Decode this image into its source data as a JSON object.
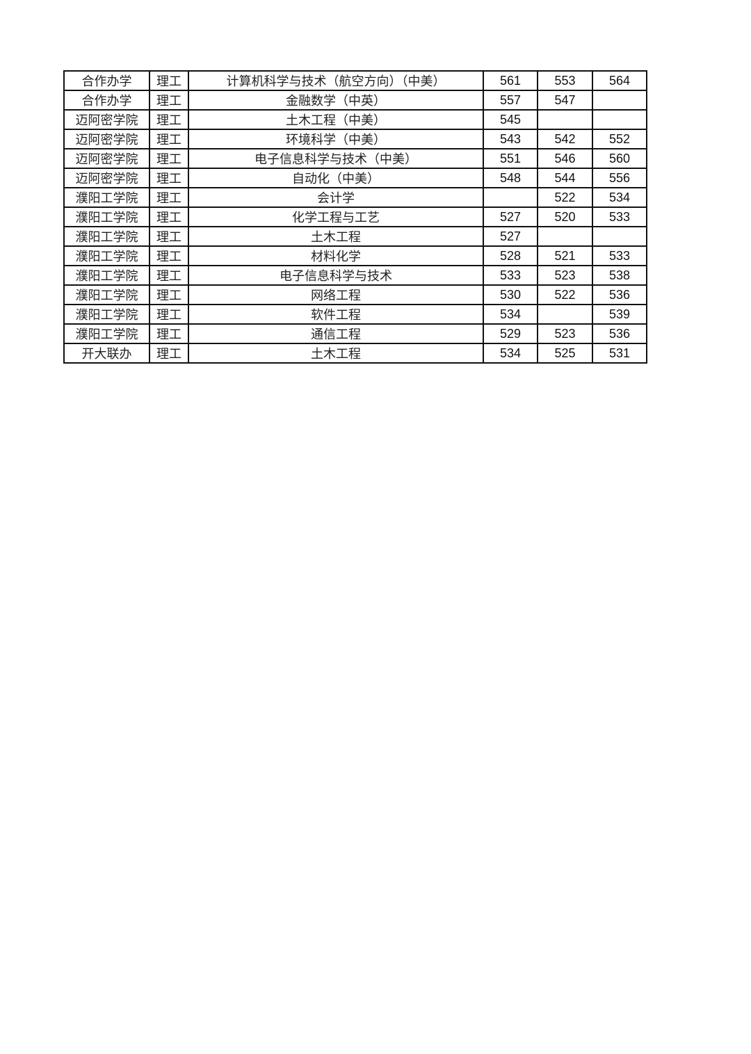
{
  "table": {
    "rows": [
      {
        "school": "合作办学",
        "category": "理工",
        "major": "计算机科学与技术（航空方向）（中美）",
        "s1": "561",
        "s2": "553",
        "s3": "564"
      },
      {
        "school": "合作办学",
        "category": "理工",
        "major": "金融数学（中英）",
        "s1": "557",
        "s2": "547",
        "s3": ""
      },
      {
        "school": "迈阿密学院",
        "category": "理工",
        "major": "土木工程（中美）",
        "s1": "545",
        "s2": "",
        "s3": ""
      },
      {
        "school": "迈阿密学院",
        "category": "理工",
        "major": "环境科学（中美）",
        "s1": "543",
        "s2": "542",
        "s3": "552"
      },
      {
        "school": "迈阿密学院",
        "category": "理工",
        "major": "电子信息科学与技术（中美）",
        "s1": "551",
        "s2": "546",
        "s3": "560"
      },
      {
        "school": "迈阿密学院",
        "category": "理工",
        "major": "自动化（中美）",
        "s1": "548",
        "s2": "544",
        "s3": "556"
      },
      {
        "school": "濮阳工学院",
        "category": "理工",
        "major": "会计学",
        "s1": "",
        "s2": "522",
        "s3": "534"
      },
      {
        "school": "濮阳工学院",
        "category": "理工",
        "major": "化学工程与工艺",
        "s1": "527",
        "s2": "520",
        "s3": "533"
      },
      {
        "school": "濮阳工学院",
        "category": "理工",
        "major": "土木工程",
        "s1": "527",
        "s2": "",
        "s3": ""
      },
      {
        "school": "濮阳工学院",
        "category": "理工",
        "major": "材料化学",
        "s1": "528",
        "s2": "521",
        "s3": "533"
      },
      {
        "school": "濮阳工学院",
        "category": "理工",
        "major": "电子信息科学与技术",
        "s1": "533",
        "s2": "523",
        "s3": "538"
      },
      {
        "school": "濮阳工学院",
        "category": "理工",
        "major": "网络工程",
        "s1": "530",
        "s2": "522",
        "s3": "536"
      },
      {
        "school": "濮阳工学院",
        "category": "理工",
        "major": "软件工程",
        "s1": "534",
        "s2": "",
        "s3": "539"
      },
      {
        "school": "濮阳工学院",
        "category": "理工",
        "major": "通信工程",
        "s1": "529",
        "s2": "523",
        "s3": "536"
      },
      {
        "school": "开大联办",
        "category": "理工",
        "major": "土木工程",
        "s1": "534",
        "s2": "525",
        "s3": "531"
      }
    ]
  }
}
